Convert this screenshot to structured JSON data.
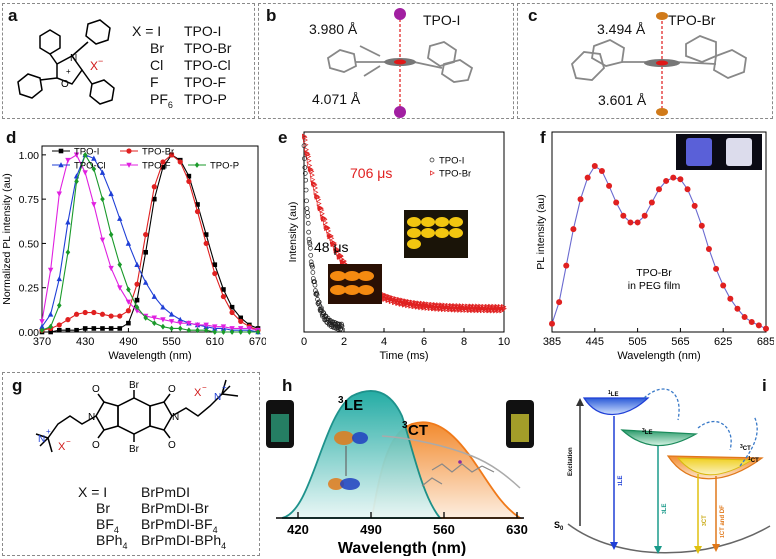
{
  "panels": {
    "a": {
      "label": "a",
      "x_var": "X = I",
      "rows": [
        {
          "x": "",
          "name": "TPO-I"
        },
        {
          "x": "Br",
          "name": "TPO-Br"
        },
        {
          "x": "Cl",
          "name": "TPO-Cl"
        },
        {
          "x": "F",
          "name": "TPO-F"
        },
        {
          "x": "PF",
          "sub": "6",
          "name": "TPO-P"
        }
      ],
      "anion": "X",
      "anion_sup": "−",
      "charge": "+",
      "n_atom": "N",
      "o_atom": "O"
    },
    "b": {
      "label": "b",
      "title": "TPO-I",
      "d1": "3.980 Å",
      "d2": "4.071 Å"
    },
    "c": {
      "label": "c",
      "title": "TPO-Br",
      "d1": "3.494 Å",
      "d2": "3.601 Å"
    },
    "d": {
      "label": "d"
    },
    "e": {
      "label": "e",
      "lt1": "706 μs",
      "lt2": "48 μs"
    },
    "f": {
      "label": "f",
      "annot1": "TPO-Br",
      "annot2": "in PEG film"
    },
    "g": {
      "label": "g",
      "x_var": "X = I",
      "rows": [
        {
          "x": "",
          "name": "BrPmDI"
        },
        {
          "x": "Br",
          "name": "BrPmDI-Br"
        },
        {
          "x": "BF",
          "sub": "4",
          "name": "BrPmDI-BF",
          "nsub": "4"
        },
        {
          "x": "BPh",
          "sub": "4",
          "name": "BrPmDI-BPh",
          "nsub": "4"
        }
      ],
      "br": "Br",
      "o": "O",
      "n": "N",
      "nplus": "N",
      "plus": "+",
      "anion": "X",
      "anion_sup": "−"
    },
    "h": {
      "label": "h",
      "le": "LE",
      "le_sup": "3",
      "ct": "CT",
      "ct_sup": "3",
      "xlabel": "Wavelength (nm)",
      "ticks": [
        "420",
        "490",
        "560",
        "630"
      ]
    },
    "i": {
      "label": "i",
      "s0": "S",
      "s0_sub": "0",
      "excitation": "Excitation",
      "le1": "LE",
      "le1_sup": "1",
      "le3": "LE",
      "le3_sup": "3",
      "ct3": "CT",
      "ct3_sup": "3",
      "ct1": "CT",
      "ct1_sup": "1",
      "arrow_le1": "LE",
      "arrow_le1_sup": "1",
      "arrow_le3": "LE",
      "arrow_le3_sup": "3",
      "arrow_ct3": "CT",
      "arrow_ct3_sup": "3",
      "arrow_ctdf": "CT and DF",
      "arrow_ctdf_sup": "1"
    }
  },
  "chart_data": [
    {
      "panel": "d",
      "type": "line",
      "xlabel": "Wavelength (nm)",
      "ylabel": "Normalized PL intensity (au)",
      "xlim": [
        370,
        670
      ],
      "ylim": [
        0,
        1.05
      ],
      "xticks": [
        370,
        430,
        490,
        550,
        610,
        670
      ],
      "yticks": [
        "0.00",
        "0.25",
        "0.50",
        "0.75",
        "1.00"
      ],
      "series": [
        {
          "name": "TPO-I",
          "color": "#000000",
          "marker": "square",
          "x": [
            370,
            382,
            394,
            406,
            418,
            430,
            442,
            454,
            466,
            478,
            490,
            502,
            514,
            526,
            538,
            550,
            562,
            574,
            586,
            598,
            610,
            622,
            634,
            646,
            658,
            670
          ],
          "y": [
            0,
            0,
            0.01,
            0.01,
            0.01,
            0.02,
            0.02,
            0.02,
            0.02,
            0.02,
            0.05,
            0.18,
            0.45,
            0.75,
            0.93,
            1.0,
            0.97,
            0.88,
            0.72,
            0.55,
            0.38,
            0.24,
            0.14,
            0.08,
            0.04,
            0.02
          ]
        },
        {
          "name": "TPO-Br",
          "color": "#e02020",
          "marker": "circle",
          "x": [
            370,
            382,
            394,
            406,
            418,
            430,
            442,
            454,
            466,
            478,
            490,
            502,
            514,
            526,
            538,
            550,
            562,
            574,
            586,
            598,
            610,
            622,
            634,
            646,
            658,
            670
          ],
          "y": [
            0.01,
            0.02,
            0.04,
            0.07,
            0.1,
            0.11,
            0.11,
            0.1,
            0.09,
            0.09,
            0.12,
            0.27,
            0.55,
            0.82,
            0.96,
            1.0,
            0.96,
            0.85,
            0.68,
            0.5,
            0.33,
            0.2,
            0.11,
            0.06,
            0.03,
            0.01
          ]
        },
        {
          "name": "TPO-Cl",
          "color": "#1f3fd6",
          "marker": "triangle",
          "x": [
            370,
            382,
            394,
            406,
            418,
            430,
            442,
            454,
            466,
            478,
            490,
            502,
            514,
            526,
            538,
            550,
            562,
            574,
            586,
            598,
            610,
            622,
            634,
            646,
            658,
            670
          ],
          "y": [
            0.03,
            0.1,
            0.3,
            0.62,
            0.88,
            1.0,
            0.98,
            0.9,
            0.78,
            0.64,
            0.5,
            0.38,
            0.28,
            0.2,
            0.14,
            0.1,
            0.07,
            0.05,
            0.04,
            0.03,
            0.02,
            0.02,
            0.01,
            0.01,
            0.01,
            0.0
          ]
        },
        {
          "name": "TPO-F",
          "color": "#e020e0",
          "marker": "triangle-down",
          "x": [
            370,
            382,
            394,
            406,
            418,
            430,
            442,
            454,
            466,
            478,
            490,
            502,
            514,
            526,
            538,
            550,
            562,
            574,
            586,
            598,
            610,
            622,
            634,
            646,
            658,
            670
          ],
          "y": [
            0.06,
            0.35,
            0.78,
            0.97,
            1.0,
            0.9,
            0.72,
            0.52,
            0.36,
            0.25,
            0.17,
            0.12,
            0.09,
            0.08,
            0.07,
            0.06,
            0.05,
            0.05,
            0.04,
            0.04,
            0.03,
            0.03,
            0.02,
            0.02,
            0.02,
            0.01
          ]
        },
        {
          "name": "TPO-P",
          "color": "#1a9a2a",
          "marker": "diamond",
          "x": [
            370,
            382,
            394,
            406,
            418,
            430,
            442,
            454,
            466,
            478,
            490,
            502,
            514,
            526,
            538,
            550,
            562,
            574,
            586,
            598,
            610,
            622,
            634,
            646,
            658,
            670
          ],
          "y": [
            0.01,
            0.03,
            0.15,
            0.45,
            0.85,
            1.0,
            0.92,
            0.75,
            0.55,
            0.38,
            0.24,
            0.14,
            0.08,
            0.05,
            0.03,
            0.02,
            0.02,
            0.01,
            0.01,
            0.01,
            0.0,
            0.0,
            0.0,
            0.0,
            0.0,
            0.0
          ]
        }
      ]
    },
    {
      "panel": "e",
      "type": "scatter",
      "xlabel": "Time (ms)",
      "ylabel": "Intensity (au)",
      "xlim": [
        0,
        10
      ],
      "xticks": [
        0,
        2,
        4,
        6,
        8,
        10
      ],
      "series": [
        {
          "name": "TPO-I",
          "color": "#222222",
          "marker": "circle-open",
          "tau_ms": 0.048
        },
        {
          "name": "TPO-Br",
          "color": "#e02020",
          "marker": "triangle-open",
          "tau_ms": 0.706
        }
      ]
    },
    {
      "panel": "f",
      "type": "line",
      "xlabel": "Wavelength (nm)",
      "ylabel": "PL intensity (au)",
      "xlim": [
        385,
        685
      ],
      "xticks": [
        385,
        445,
        505,
        565,
        625,
        685
      ],
      "series": [
        {
          "name": "TPO-Br in PEG film",
          "color": "#e02020",
          "x": [
            385,
            395,
            405,
            415,
            425,
            435,
            445,
            455,
            465,
            475,
            485,
            495,
            505,
            515,
            525,
            535,
            545,
            555,
            565,
            575,
            585,
            595,
            605,
            615,
            625,
            635,
            645,
            655,
            665,
            675,
            685
          ],
          "y": [
            0.05,
            0.18,
            0.4,
            0.62,
            0.8,
            0.93,
            1.0,
            0.97,
            0.88,
            0.78,
            0.7,
            0.66,
            0.66,
            0.7,
            0.78,
            0.86,
            0.91,
            0.93,
            0.92,
            0.86,
            0.76,
            0.64,
            0.5,
            0.38,
            0.28,
            0.2,
            0.14,
            0.09,
            0.06,
            0.04,
            0.02
          ]
        }
      ]
    }
  ]
}
